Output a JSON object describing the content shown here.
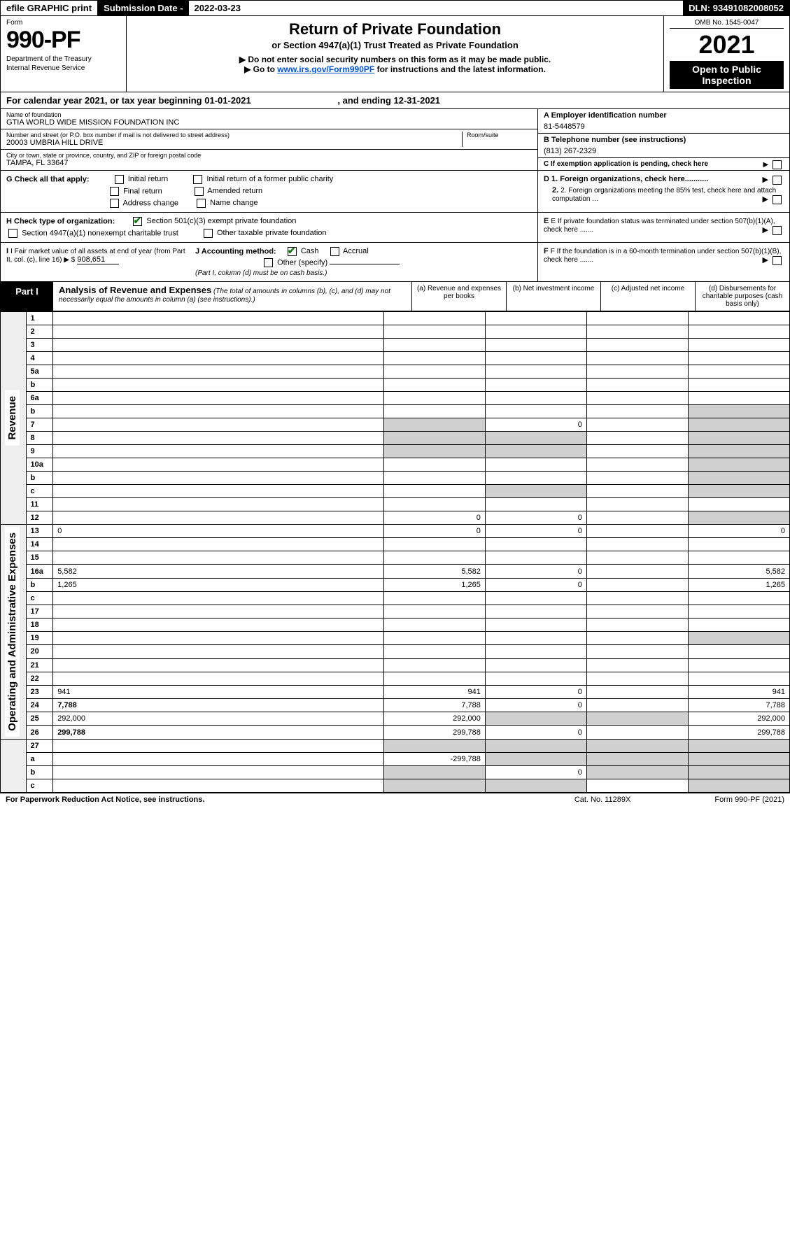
{
  "topbar": {
    "efile": "efile GRAPHIC print",
    "subdate_label": "Submission Date - ",
    "subdate_val": "2022-03-23",
    "dln_label": "DLN: ",
    "dln_val": "93491082008052"
  },
  "header": {
    "form_label": "Form",
    "form_number": "990-PF",
    "dept1": "Department of the Treasury",
    "dept2": "Internal Revenue Service",
    "title_main": "Return of Private Foundation",
    "title_sub": "or Section 4947(a)(1) Trust Treated as Private Foundation",
    "title_note": "▶ Do not enter social security numbers on this form as it may be made public.",
    "title_note2_pre": "▶ Go to ",
    "title_note2_link": "www.irs.gov/Form990PF",
    "title_note2_post": " for instructions and the latest information.",
    "omb": "OMB No. 1545-0047",
    "year": "2021",
    "open_public": "Open to Public Inspection"
  },
  "calendar": {
    "text_pre": "For calendar year 2021, or tax year beginning ",
    "begin": "01-01-2021",
    "text_mid": ", and ending ",
    "end": "12-31-2021"
  },
  "info": {
    "name_label": "Name of foundation",
    "name_val": "GTIA WORLD WIDE MISSION FOUNDATION INC",
    "addr_label": "Number and street (or P.O. box number if mail is not delivered to street address)",
    "addr_val": "20003 UMBRIA HILL DRIVE",
    "room_label": "Room/suite",
    "room_val": "",
    "city_label": "City or town, state or province, country, and ZIP or foreign postal code",
    "city_val": "TAMPA, FL  33647",
    "ein_label": "A Employer identification number",
    "ein_val": "81-5448579",
    "tel_label": "B Telephone number (see instructions)",
    "tel_val": "(813) 267-2329",
    "c_label": "C If exemption application is pending, check here"
  },
  "checks": {
    "g_label": "G Check all that apply:",
    "g1": "Initial return",
    "g2": "Initial return of a former public charity",
    "g3": "Final return",
    "g4": "Amended return",
    "g5": "Address change",
    "g6": "Name change",
    "h_label": "H Check type of organization:",
    "h1": "Section 501(c)(3) exempt private foundation",
    "h2": "Section 4947(a)(1) nonexempt charitable trust",
    "h3": "Other taxable private foundation",
    "i_label": "I Fair market value of all assets at end of year (from Part II, col. (c), line 16) ▶ $",
    "i_val": "908,651",
    "j_label": "J Accounting method:",
    "j1": "Cash",
    "j2": "Accrual",
    "j3": "Other (specify)",
    "j_note": "(Part I, column (d) must be on cash basis.)",
    "d1": "D 1. Foreign organizations, check here...........",
    "d2": "2. Foreign organizations meeting the 85% test, check here and attach computation ...",
    "e_label": "E  If private foundation status was terminated under section 507(b)(1)(A), check here .......",
    "f_label": "F  If the foundation is in a 60-month termination under section 507(b)(1)(B), check here ......."
  },
  "part1": {
    "label": "Part I",
    "title": "Analysis of Revenue and Expenses",
    "note": " (The total of amounts in columns (b), (c), and (d) may not necessarily equal the amounts in column (a) (see instructions).)",
    "col_a": "(a)   Revenue and expenses per books",
    "col_b": "(b)   Net investment income",
    "col_c": "(c)   Adjusted net income",
    "col_d": "(d)   Disbursements for charitable purposes (cash basis only)"
  },
  "sections": {
    "revenue": "Revenue",
    "expenses": "Operating and Administrative Expenses"
  },
  "rows": [
    {
      "n": "1",
      "d": "",
      "a": "",
      "b": "",
      "c": "",
      "sd": false
    },
    {
      "n": "2",
      "d": "",
      "a": "",
      "b": "",
      "c": "",
      "sd": false,
      "checkrow": true
    },
    {
      "n": "3",
      "d": "",
      "a": "",
      "b": "",
      "c": "",
      "sd": false
    },
    {
      "n": "4",
      "d": "",
      "a": "",
      "b": "",
      "c": "",
      "sd": false
    },
    {
      "n": "5a",
      "d": "",
      "a": "",
      "b": "",
      "c": "",
      "sd": false
    },
    {
      "n": "b",
      "d": "",
      "a": "",
      "b": "",
      "c": "",
      "sd": false,
      "inline": true
    },
    {
      "n": "6a",
      "d": "",
      "a": "",
      "b": "",
      "c": "",
      "sd": false
    },
    {
      "n": "b",
      "d": "",
      "a": "",
      "b": "",
      "c": "",
      "sd": true,
      "inline": true
    },
    {
      "n": "7",
      "d": "",
      "a": "",
      "b": "0",
      "c": "",
      "sd": true,
      "sa": true
    },
    {
      "n": "8",
      "d": "",
      "a": "",
      "b": "",
      "c": "",
      "sd": true,
      "sa": true,
      "sb": true
    },
    {
      "n": "9",
      "d": "",
      "a": "",
      "b": "",
      "c": "",
      "sd": true,
      "sa": true,
      "sb": true
    },
    {
      "n": "10a",
      "d": "",
      "a": "",
      "b": "",
      "c": "",
      "sd": true,
      "inline": true
    },
    {
      "n": "b",
      "d": "",
      "a": "",
      "b": "",
      "c": "",
      "sd": true,
      "inline": true
    },
    {
      "n": "c",
      "d": "",
      "a": "",
      "b": "",
      "c": "",
      "sd": true,
      "sb": true
    },
    {
      "n": "11",
      "d": "",
      "a": "",
      "b": "",
      "c": "",
      "sd": false
    },
    {
      "n": "12",
      "d": "",
      "a": "0",
      "b": "0",
      "c": "",
      "sd": true,
      "bold": true
    }
  ],
  "exp_rows": [
    {
      "n": "13",
      "d": "0",
      "a": "0",
      "b": "0",
      "c": ""
    },
    {
      "n": "14",
      "d": "",
      "a": "",
      "b": "",
      "c": ""
    },
    {
      "n": "15",
      "d": "",
      "a": "",
      "b": "",
      "c": ""
    },
    {
      "n": "16a",
      "d": "5,582",
      "a": "5,582",
      "b": "0",
      "c": ""
    },
    {
      "n": "b",
      "d": "1,265",
      "a": "1,265",
      "b": "0",
      "c": ""
    },
    {
      "n": "c",
      "d": "",
      "a": "",
      "b": "",
      "c": ""
    },
    {
      "n": "17",
      "d": "",
      "a": "",
      "b": "",
      "c": ""
    },
    {
      "n": "18",
      "d": "",
      "a": "",
      "b": "",
      "c": ""
    },
    {
      "n": "19",
      "d": "",
      "a": "",
      "b": "",
      "c": "",
      "sd": true
    },
    {
      "n": "20",
      "d": "",
      "a": "",
      "b": "",
      "c": ""
    },
    {
      "n": "21",
      "d": "",
      "a": "",
      "b": "",
      "c": ""
    },
    {
      "n": "22",
      "d": "",
      "a": "",
      "b": "",
      "c": ""
    },
    {
      "n": "23",
      "d": "941",
      "a": "941",
      "b": "0",
      "c": ""
    },
    {
      "n": "24",
      "d": "7,788",
      "a": "7,788",
      "b": "0",
      "c": "",
      "bold": true
    },
    {
      "n": "25",
      "d": "292,000",
      "a": "292,000",
      "b": "",
      "c": "",
      "sb": true,
      "sc": true
    },
    {
      "n": "26",
      "d": "299,788",
      "a": "299,788",
      "b": "0",
      "c": "",
      "bold": true
    }
  ],
  "net_rows": [
    {
      "n": "27",
      "d": "",
      "a": "",
      "b": "",
      "c": "",
      "sa": true,
      "sb": true,
      "sc": true,
      "sd": true
    },
    {
      "n": "a",
      "d": "",
      "a": "-299,788",
      "b": "",
      "c": "",
      "bold": true,
      "sb": true,
      "sc": true,
      "sd": true
    },
    {
      "n": "b",
      "d": "",
      "a": "",
      "b": "0",
      "c": "",
      "bold": true,
      "sa": true,
      "sc": true,
      "sd": true
    },
    {
      "n": "c",
      "d": "",
      "a": "",
      "b": "",
      "c": "",
      "bold": true,
      "sa": true,
      "sb": true,
      "sd": true
    }
  ],
  "footer": {
    "left": "For Paperwork Reduction Act Notice, see instructions.",
    "mid": "Cat. No. 11289X",
    "right": "Form 990-PF (2021)"
  }
}
